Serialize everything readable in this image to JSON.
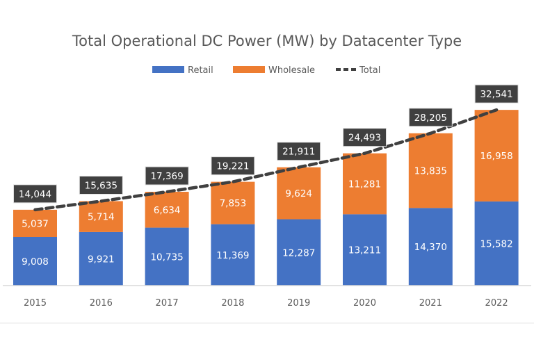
{
  "chart_data": {
    "type": "bar",
    "stacked": true,
    "title": "Total Operational DC Power (MW) by Datacenter Type",
    "categories": [
      "2015",
      "2016",
      "2017",
      "2018",
      "2019",
      "2020",
      "2021",
      "2022"
    ],
    "series": [
      {
        "name": "Retail",
        "type": "bar",
        "color": "#4472C4",
        "values": [
          9008,
          9921,
          10735,
          11369,
          12287,
          13211,
          14370,
          15582
        ]
      },
      {
        "name": "Wholesale",
        "type": "bar",
        "color": "#ED7D31",
        "values": [
          5037,
          5714,
          6634,
          7853,
          9624,
          11281,
          13835,
          16958
        ]
      },
      {
        "name": "Total",
        "type": "line",
        "style": "dashed",
        "color": "#404040",
        "values": [
          14044,
          15635,
          17369,
          19221,
          21911,
          24493,
          28205,
          32541
        ]
      }
    ],
    "data_labels": {
      "Retail": [
        "9,008",
        "9,921",
        "10,735",
        "11,369",
        "12,287",
        "13,211",
        "14,370",
        "15,582"
      ],
      "Wholesale": [
        "5,037",
        "5,714",
        "6,634",
        "7,853",
        "9,624",
        "11,281",
        "13,835",
        "16,958"
      ],
      "Total": [
        "14,044",
        "15,635",
        "17,369",
        "19,221",
        "21,911",
        "24,493",
        "28,205",
        "32,541"
      ]
    },
    "legend": "top",
    "grid": false,
    "xlabel": "",
    "ylabel": ""
  }
}
